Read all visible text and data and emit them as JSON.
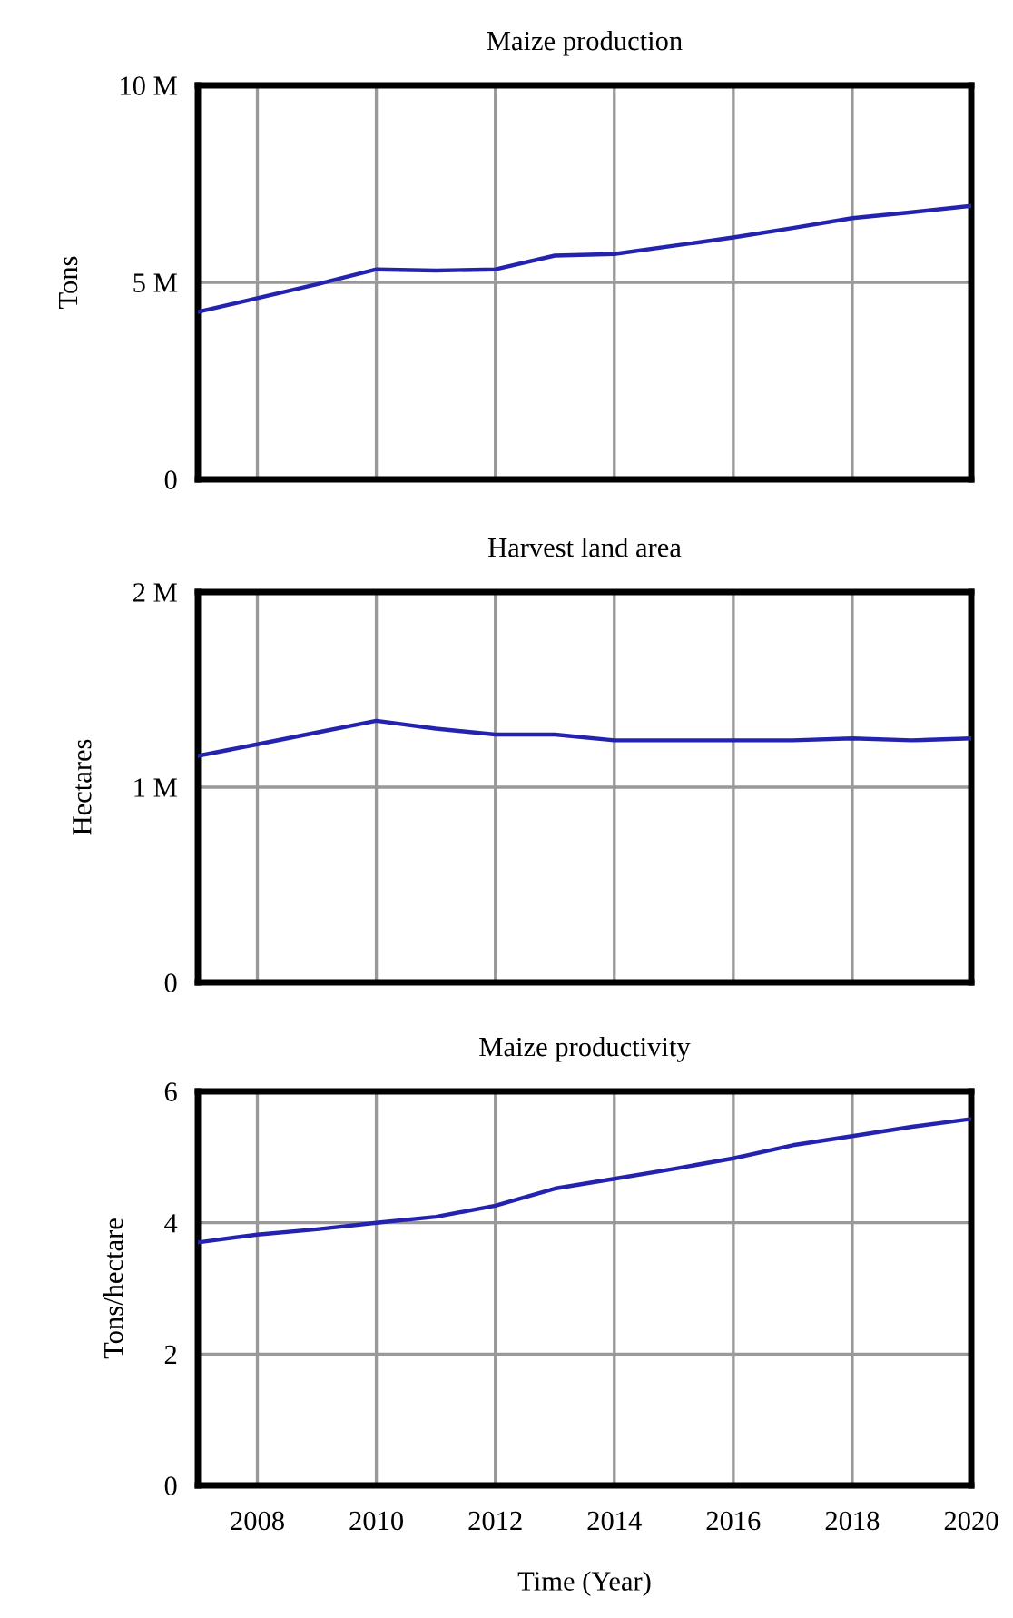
{
  "chart_data": [
    {
      "type": "line",
      "title": "Maize production",
      "ylabel": "Tons",
      "x": [
        2007,
        2008,
        2009,
        2010,
        2011,
        2012,
        2013,
        2014,
        2015,
        2016,
        2017,
        2018,
        2019,
        2020
      ],
      "series": [
        {
          "color": "#2323b0",
          "values": [
            4.25,
            4.6,
            4.95,
            5.33,
            5.3,
            5.33,
            5.68,
            5.72,
            5.93,
            6.14,
            6.38,
            6.63,
            6.78,
            6.94
          ]
        }
      ],
      "xlim": [
        2007,
        2020
      ],
      "xticks": [
        2008,
        2010,
        2012,
        2014,
        2016,
        2018,
        2020
      ],
      "ylim": [
        0,
        10
      ],
      "yticks": [
        0,
        {
          "value": 5,
          "label": "5 M"
        },
        {
          "value": 10,
          "label": "10 M"
        }
      ],
      "grid": true,
      "tick_labels": "y"
    },
    {
      "type": "line",
      "title": "Harvest land area",
      "ylabel": "Hectares",
      "x": [
        2007,
        2008,
        2009,
        2010,
        2011,
        2012,
        2013,
        2014,
        2015,
        2016,
        2017,
        2018,
        2019,
        2020
      ],
      "series": [
        {
          "color": "#2323b0",
          "values": [
            1.16,
            1.22,
            1.28,
            1.34,
            1.3,
            1.27,
            1.27,
            1.24,
            1.24,
            1.24,
            1.24,
            1.25,
            1.24,
            1.25
          ]
        }
      ],
      "xlim": [
        2007,
        2020
      ],
      "xticks": [
        2008,
        2010,
        2012,
        2014,
        2016,
        2018,
        2020
      ],
      "ylim": [
        0,
        2
      ],
      "yticks": [
        0,
        {
          "value": 1,
          "label": "1 M"
        },
        {
          "value": 2,
          "label": "2 M"
        }
      ],
      "grid": true,
      "tick_labels": "y"
    },
    {
      "type": "line",
      "title": "Maize productivity",
      "ylabel": "Tons/hectare",
      "xlabel": "Time (Year)",
      "x": [
        2007,
        2008,
        2009,
        2010,
        2011,
        2012,
        2013,
        2014,
        2015,
        2016,
        2017,
        2018,
        2019,
        2020
      ],
      "series": [
        {
          "color": "#2323b0",
          "values": [
            3.7,
            3.82,
            3.9,
            4.0,
            4.09,
            4.26,
            4.52,
            4.67,
            4.82,
            4.98,
            5.18,
            5.32,
            5.46,
            5.58
          ]
        }
      ],
      "xlim": [
        2007,
        2020
      ],
      "xticks": [
        2008,
        2010,
        2012,
        2014,
        2016,
        2018,
        2020
      ],
      "ylim": [
        0,
        6
      ],
      "yticks": [
        0,
        2,
        4,
        6
      ],
      "grid": true
    }
  ]
}
